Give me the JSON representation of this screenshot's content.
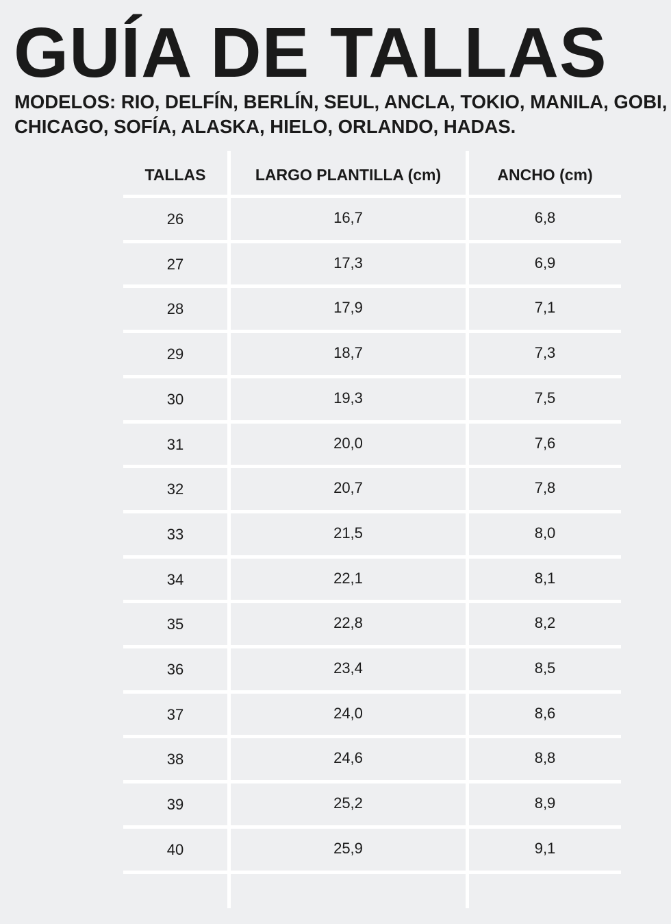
{
  "title": "GUÍA DE TALLAS",
  "subtitle": "MODELOS: RIO, DELFÍN, BERLÍN, SEUL, ANCLA, TOKIO, MANILA, GOBI, CHICAGO, SOFÍA, ALASKA, HIELO, ORLANDO, HADAS.",
  "table": {
    "headers": [
      "TALLAS",
      "LARGO PLANTILLA (cm)",
      "ANCHO (cm)"
    ],
    "rows": [
      [
        "26",
        "16,7",
        "6,8"
      ],
      [
        "27",
        "17,3",
        "6,9"
      ],
      [
        "28",
        "17,9",
        "7,1"
      ],
      [
        "29",
        "18,7",
        "7,3"
      ],
      [
        "30",
        "19,3",
        "7,5"
      ],
      [
        "31",
        "20,0",
        "7,6"
      ],
      [
        "32",
        "20,7",
        "7,8"
      ],
      [
        "33",
        "21,5",
        "8,0"
      ],
      [
        "34",
        "22,1",
        "8,1"
      ],
      [
        "35",
        "22,8",
        "8,2"
      ],
      [
        "36",
        "23,4",
        "8,5"
      ],
      [
        "37",
        "24,0",
        "8,6"
      ],
      [
        "38",
        "24,6",
        "8,8"
      ],
      [
        "39",
        "25,2",
        "8,9"
      ],
      [
        "40",
        "25,9",
        "9,1"
      ]
    ]
  }
}
